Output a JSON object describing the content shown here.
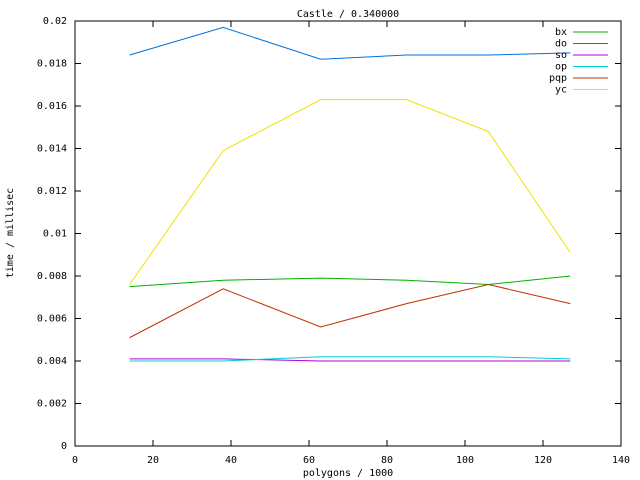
{
  "chart_data": {
    "type": "line",
    "title": "Castle / 0.340000",
    "x_label": "polygons / 1000",
    "y_label": "time / millisec",
    "x": [
      14,
      38,
      63,
      85,
      106,
      127
    ],
    "series": [
      {
        "name": "bx",
        "color": "#00b000",
        "values": [
          0.0075,
          0.0078,
          0.0079,
          0.0078,
          0.0076,
          0.008
        ]
      },
      {
        "name": "do",
        "color": "#0070e0",
        "values": [
          0.0184,
          0.0197,
          0.0182,
          0.0184,
          0.0184,
          0.0185
        ]
      },
      {
        "name": "so",
        "color": "#b000e0",
        "values": [
          0.0041,
          0.0041,
          0.004,
          0.004,
          0.004,
          0.004
        ]
      },
      {
        "name": "op",
        "color": "#00d0d0",
        "values": [
          0.004,
          0.004,
          0.0042,
          0.0042,
          0.0042,
          0.0041
        ]
      },
      {
        "name": "pqp",
        "color": "#c03000",
        "values": [
          0.0051,
          0.0074,
          0.0056,
          0.0067,
          0.0076,
          0.0067
        ]
      },
      {
        "name": "yc",
        "color": "#f0e000",
        "values": [
          0.0076,
          0.0139,
          0.0163,
          0.0163,
          0.0148,
          0.0091
        ]
      }
    ],
    "xlim": [
      0,
      140
    ],
    "xticks": [
      0,
      20,
      40,
      60,
      80,
      100,
      120,
      140
    ],
    "ylim": [
      0,
      0.02
    ],
    "yticks": [
      0,
      0.002,
      0.004,
      0.006,
      0.008,
      0.01,
      0.012,
      0.014,
      0.016,
      0.018,
      0.02
    ],
    "legend": "top-right"
  }
}
